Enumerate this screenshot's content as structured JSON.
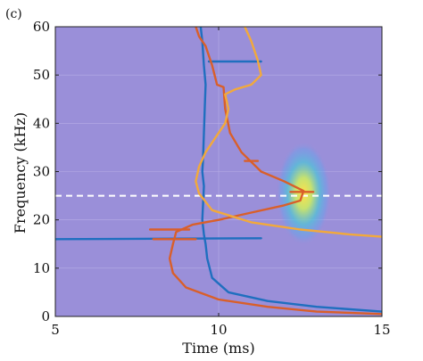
{
  "chart_data": {
    "type": "line",
    "panel_label": "(c)",
    "xlabel": "Time (ms)",
    "ylabel": "Frequency (kHz)",
    "xlim": [
      5,
      15
    ],
    "ylim": [
      0,
      60
    ],
    "x_ticks": [
      5,
      10,
      15
    ],
    "y_ticks": [
      0,
      10,
      20,
      30,
      40,
      50,
      60
    ],
    "background_color": "#9a8fd9",
    "grid": true,
    "reference_line": {
      "y": 25,
      "style": "dashed",
      "color": "#ffffff"
    },
    "spectrogram_hotspot": {
      "x": 12.6,
      "y": 25.5,
      "sx": 0.35,
      "sy": 4.5,
      "colors": [
        "#ffd23f",
        "#9fe07a",
        "#4fb8e8"
      ]
    },
    "series": [
      {
        "color": "#1f6fbf",
        "segments": [
          [
            [
              9.45,
              60
            ],
            [
              9.5,
              57
            ],
            [
              9.55,
              52
            ],
            [
              9.6,
              48
            ],
            [
              9.58,
              44
            ],
            [
              9.55,
              38
            ],
            [
              9.52,
              32
            ],
            [
              9.5,
              30
            ],
            [
              9.55,
              27
            ],
            [
              9.5,
              20
            ],
            [
              9.55,
              17
            ],
            [
              9.6,
              15
            ],
            [
              9.65,
              12
            ],
            [
              9.8,
              8
            ],
            [
              10.3,
              5
            ],
            [
              11.5,
              3.2
            ],
            [
              13,
              2
            ],
            [
              15,
              1
            ]
          ],
          [
            [
              9.7,
              52.8
            ],
            [
              11.3,
              52.8
            ]
          ],
          [
            [
              5,
              16
            ],
            [
              11.3,
              16.2
            ]
          ]
        ]
      },
      {
        "color": "#d95f2a",
        "segments": [
          [
            [
              9.3,
              60
            ],
            [
              9.4,
              58
            ],
            [
              9.6,
              56
            ],
            [
              9.8,
              52
            ],
            [
              9.95,
              48
            ],
            [
              10.15,
              47.5
            ],
            [
              10.2,
              43
            ],
            [
              10.35,
              38
            ],
            [
              10.7,
              34
            ],
            [
              11.0,
              32
            ],
            [
              11.3,
              30
            ],
            [
              12.0,
              28
            ],
            [
              12.6,
              26
            ],
            [
              12.5,
              24
            ],
            [
              12,
              23
            ],
            [
              11,
              21.5
            ],
            [
              10,
              20
            ],
            [
              9.2,
              19
            ],
            [
              8.7,
              17.5
            ],
            [
              8.6,
              15
            ],
            [
              8.5,
              12
            ],
            [
              8.6,
              9
            ],
            [
              9,
              6
            ],
            [
              10,
              3.5
            ],
            [
              11.5,
              2
            ],
            [
              13,
              1
            ],
            [
              15,
              0.5
            ]
          ],
          [
            [
              7.9,
              18
            ],
            [
              9.1,
              18
            ]
          ],
          [
            [
              8,
              16
            ],
            [
              9.3,
              16
            ]
          ],
          [
            [
              10.8,
              32.2
            ],
            [
              11.2,
              32.2
            ]
          ],
          [
            [
              12.2,
              25.8
            ],
            [
              12.9,
              25.8
            ]
          ]
        ]
      },
      {
        "color": "#f2a93b",
        "segments": [
          [
            [
              10.8,
              60
            ],
            [
              11.0,
              57
            ],
            [
              11.2,
              53
            ],
            [
              11.3,
              50
            ],
            [
              11.0,
              48
            ],
            [
              10.5,
              47
            ],
            [
              10.2,
              46
            ],
            [
              10.3,
              43
            ],
            [
              10.2,
              40
            ],
            [
              9.9,
              37
            ],
            [
              9.6,
              34
            ],
            [
              9.4,
              31
            ],
            [
              9.3,
              28
            ],
            [
              9.4,
              25.5
            ],
            [
              9.8,
              22
            ],
            [
              11,
              19.5
            ],
            [
              12.5,
              18
            ],
            [
              14,
              17
            ],
            [
              15,
              16.5
            ]
          ]
        ]
      }
    ]
  }
}
